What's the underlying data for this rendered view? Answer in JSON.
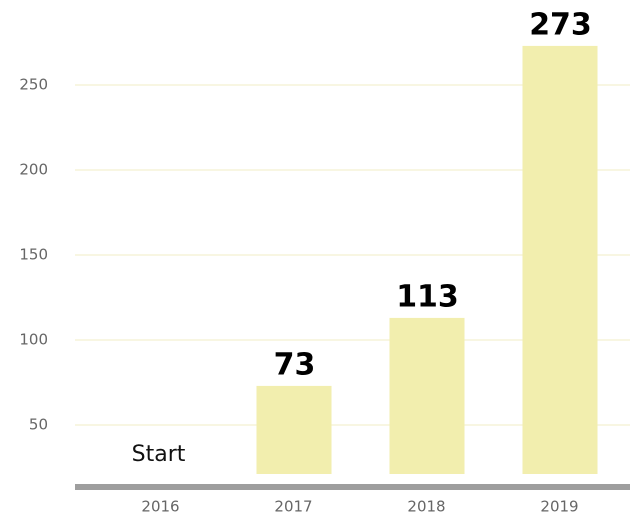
{
  "chart_data": {
    "type": "bar",
    "categories": [
      "2016",
      "2017",
      "2018",
      "2019"
    ],
    "values": [
      null,
      73,
      113,
      273
    ],
    "value_labels": [
      "Start",
      "73",
      "113",
      "273"
    ],
    "color": "#f2eeae",
    "ylim": [
      0,
      290
    ],
    "yticks": [
      50,
      100,
      150,
      200,
      250
    ],
    "grid": true
  }
}
